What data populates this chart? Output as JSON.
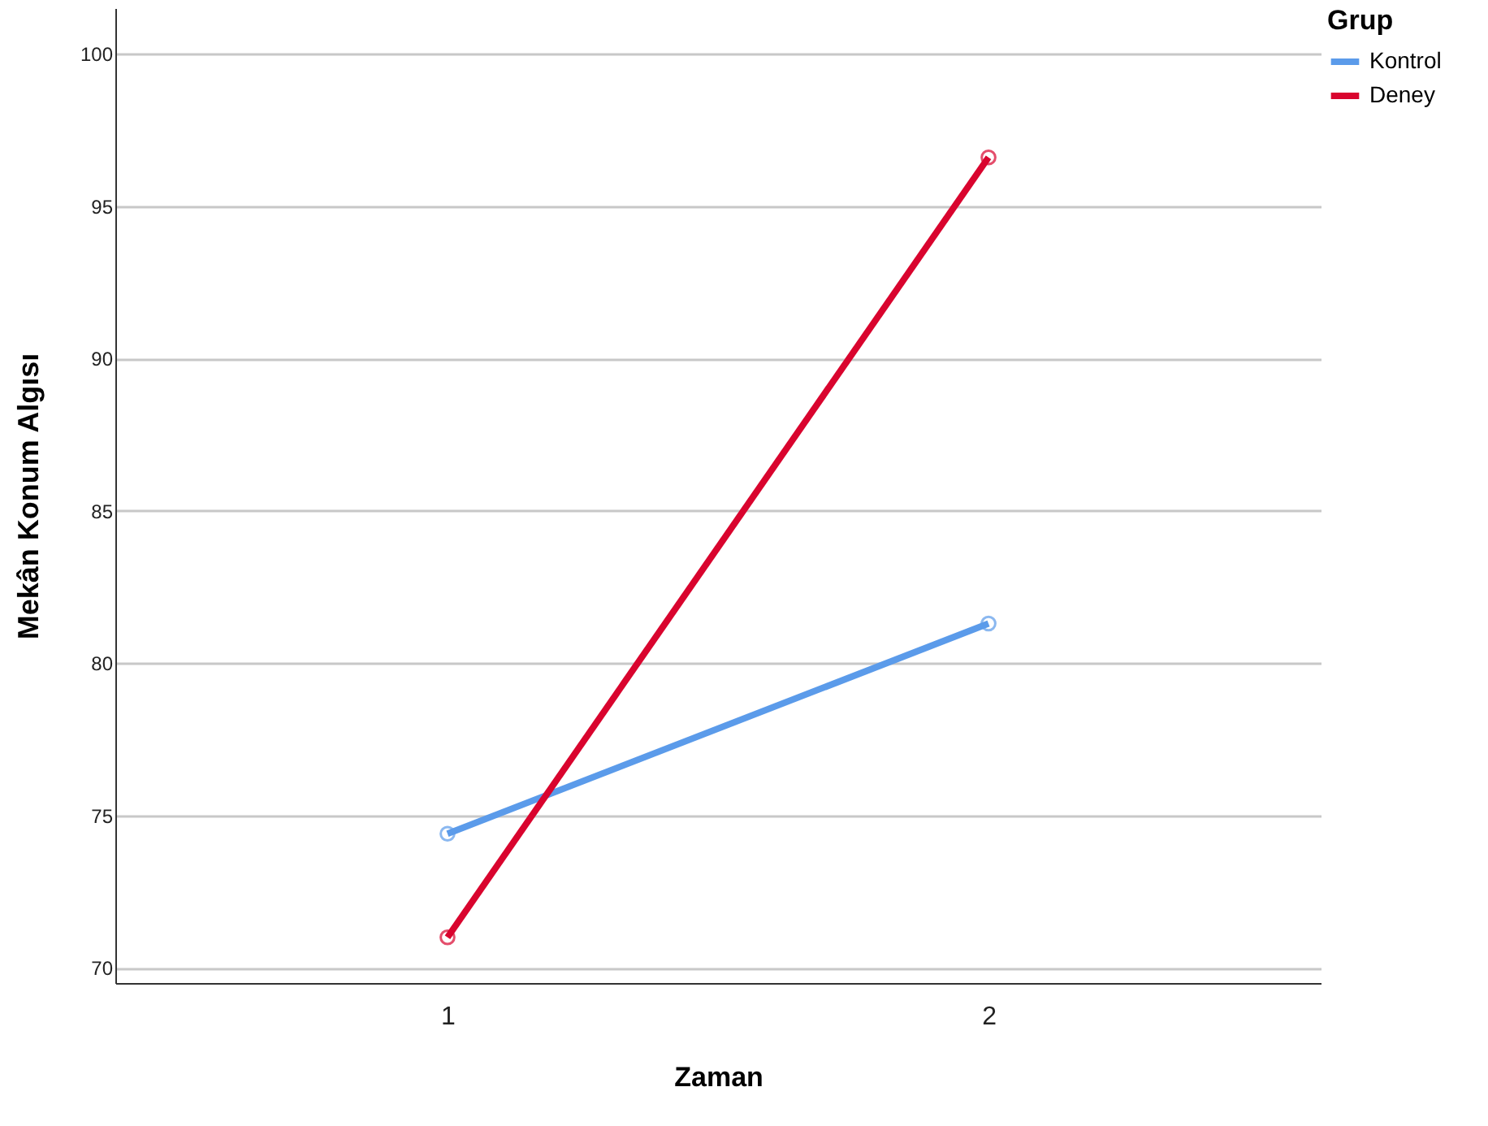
{
  "chart_data": {
    "type": "line",
    "xlabel": "Zaman",
    "ylabel": "Mekân Konum Algısı",
    "legend_title": "Grup",
    "categories": [
      "1",
      "2"
    ],
    "series": [
      {
        "name": "Kontrol",
        "color": "#5b9bea",
        "values": [
          74.4,
          81.3
        ]
      },
      {
        "name": "Deney",
        "color": "#d9042e",
        "values": [
          71.0,
          96.6
        ]
      }
    ],
    "ylim": [
      69.5,
      101.5
    ],
    "yticks": [
      70,
      75,
      80,
      85,
      90,
      95,
      100
    ],
    "grid": "y",
    "legend": "top right",
    "marker": "circle",
    "line_style": "solid"
  }
}
